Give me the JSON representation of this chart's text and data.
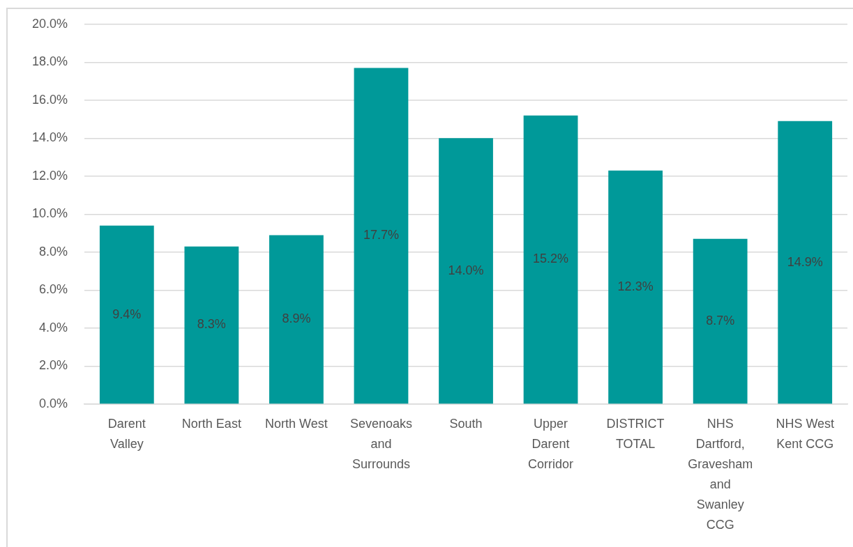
{
  "chart_data": {
    "type": "bar",
    "categories": [
      "Darent Valley",
      "North East",
      "North West",
      "Sevenoaks and Surrounds",
      "South",
      "Upper Darent Corridor",
      "DISTRICT TOTAL",
      "NHS Dartford, Gravesham and Swanley CCG",
      "NHS West Kent CCG"
    ],
    "values": [
      9.4,
      8.3,
      8.9,
      17.7,
      14.0,
      15.2,
      12.3,
      8.7,
      14.9
    ],
    "value_labels": [
      "9.4%",
      "8.3%",
      "8.9%",
      "17.7%",
      "14.0%",
      "15.2%",
      "12.3%",
      "8.7%",
      "14.9%"
    ],
    "color": "#009999",
    "ylim": [
      0,
      20
    ],
    "yticks": [
      {
        "value": 0,
        "label": "0.0%"
      },
      {
        "value": 2,
        "label": "2.0%"
      },
      {
        "value": 4,
        "label": "4.0%"
      },
      {
        "value": 6,
        "label": "6.0%"
      },
      {
        "value": 8,
        "label": "8.0%"
      },
      {
        "value": 10,
        "label": "10.0%"
      },
      {
        "value": 12,
        "label": "12.0%"
      },
      {
        "value": 14,
        "label": "14.0%"
      },
      {
        "value": 16,
        "label": "16.0%"
      },
      {
        "value": 18,
        "label": "18.0%"
      },
      {
        "value": 20,
        "label": "20.0%"
      }
    ],
    "grid": "y",
    "legend": false
  }
}
